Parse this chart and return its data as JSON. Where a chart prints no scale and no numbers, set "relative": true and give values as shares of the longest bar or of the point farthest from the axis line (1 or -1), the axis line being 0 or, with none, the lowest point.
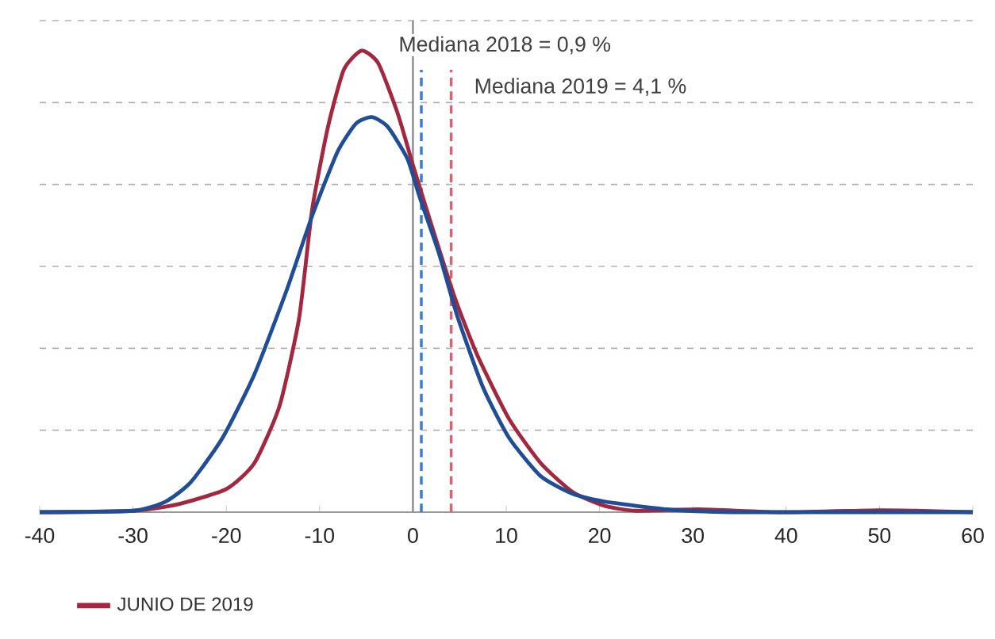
{
  "chart_data": {
    "type": "line",
    "relative": true,
    "grid": "y",
    "legend": "bottom left",
    "line_style": "solid",
    "marker": "none",
    "xlim": [
      -40,
      60
    ],
    "xticks": [
      -40,
      -30,
      -20,
      -10,
      0,
      10,
      20,
      30,
      40,
      50,
      60
    ],
    "series": [
      {
        "name": "JUNIO DE 2019",
        "color": "#a3283f",
        "x": [
          -40,
          -30,
          -25.2,
          -20,
          -17,
          -14.3,
          -12.2,
          -10.8,
          -9.1,
          -7.4,
          -5.5,
          -3.7,
          -1.6,
          0,
          2.1,
          4.5,
          6.9,
          10.3,
          13.7,
          17.1,
          20.5,
          23.9,
          30.7,
          39.6,
          49.8,
          53.9,
          60
        ],
        "values": [
          0,
          0.003,
          0.017,
          0.05,
          0.106,
          0.23,
          0.42,
          0.656,
          0.835,
          0.959,
          1.0,
          0.972,
          0.862,
          0.752,
          0.615,
          0.464,
          0.34,
          0.202,
          0.106,
          0.044,
          0.014,
          0.003,
          0.006,
          0,
          0.004,
          0.003,
          0
        ]
      },
      {
        "color": "#1f4e96",
        "x": [
          -40,
          -30,
          -26.5,
          -23.8,
          -20.4,
          -17,
          -13.6,
          -10.8,
          -8.1,
          -6.1,
          -4.4,
          -2.7,
          -0.6,
          0.7,
          2.8,
          4.8,
          7.5,
          10.3,
          13.7,
          17.1,
          20.5,
          27.3,
          34.1,
          44.3,
          60
        ],
        "values": [
          0,
          0.003,
          0.023,
          0.065,
          0.161,
          0.298,
          0.477,
          0.642,
          0.78,
          0.842,
          0.856,
          0.835,
          0.766,
          0.684,
          0.56,
          0.422,
          0.271,
          0.161,
          0.078,
          0.04,
          0.023,
          0.006,
          0,
          0,
          0
        ]
      }
    ],
    "ref_lines": [
      {
        "axis": "x",
        "value": 0,
        "color": "#8c8c8c",
        "line_style": "solid"
      },
      {
        "axis": "x",
        "value": 0.9,
        "label": "Mediana 2018 = 0,9 %",
        "color": "#3a7bd5",
        "line_style": "dashed"
      },
      {
        "axis": "x",
        "value": 4.1,
        "label": "Mediana 2019 = 4,1 %",
        "color": "#e06070",
        "line_style": "dashed"
      }
    ]
  }
}
